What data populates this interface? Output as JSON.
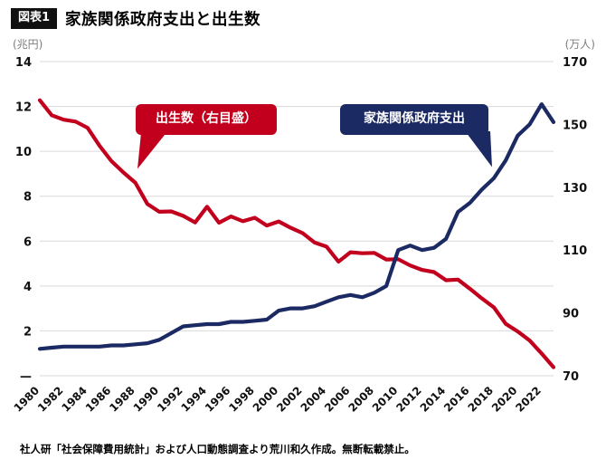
{
  "header": {
    "badge": "図表1",
    "title": "家族関係政府支出と出生数"
  },
  "chart": {
    "left_unit": "(兆円)",
    "right_unit": "(万人)",
    "births_label": "出生数（右目盛）",
    "spending_label": "家族関係政府支出",
    "accent_red": "#c2001e",
    "accent_navy": "#1b2a63"
  },
  "footer": {
    "note": "社人研「社会保障費用統計」および人口動態調査より荒川和久作成。無断転載禁止。"
  },
  "chart_data": {
    "type": "line",
    "title": "家族関係政府支出と出生数",
    "x": [
      1980,
      1981,
      1982,
      1983,
      1984,
      1985,
      1986,
      1987,
      1988,
      1989,
      1990,
      1991,
      1992,
      1993,
      1994,
      1995,
      1996,
      1997,
      1998,
      1999,
      2000,
      2001,
      2002,
      2003,
      2004,
      2005,
      2006,
      2007,
      2008,
      2009,
      2010,
      2011,
      2012,
      2013,
      2014,
      2015,
      2016,
      2017,
      2018,
      2019,
      2020,
      2021,
      2022,
      2023
    ],
    "x_tick_labels": [
      "1980",
      "1982",
      "1984",
      "1986",
      "1988",
      "1990",
      "1992",
      "1994",
      "1996",
      "1998",
      "2000",
      "2002",
      "2004",
      "2006",
      "2008",
      "2010",
      "2012",
      "2014",
      "2016",
      "2018",
      "2020",
      "2022"
    ],
    "series": [
      {
        "name": "出生数（右目盛）",
        "axis": "right",
        "color": "#c2001e",
        "values": [
          157.7,
          152.9,
          151.5,
          150.9,
          148.9,
          143.2,
          138.3,
          134.7,
          131.4,
          124.7,
          122.2,
          122.3,
          120.9,
          118.8,
          123.8,
          118.7,
          120.7,
          119.2,
          120.3,
          117.8,
          119.1,
          117.1,
          115.4,
          112.4,
          111.1,
          106.3,
          109.3,
          109.0,
          109.1,
          107.0,
          107.1,
          105.1,
          103.7,
          103.0,
          100.4,
          100.6,
          97.7,
          94.6,
          91.8,
          86.5,
          84.1,
          81.2,
          77.1,
          72.7
        ]
      },
      {
        "name": "家族関係政府支出",
        "axis": "left",
        "color": "#1b2a63",
        "values": [
          1.2,
          1.25,
          1.3,
          1.3,
          1.3,
          1.3,
          1.35,
          1.35,
          1.4,
          1.45,
          1.6,
          1.9,
          2.2,
          2.25,
          2.3,
          2.3,
          2.4,
          2.4,
          2.45,
          2.5,
          2.9,
          3.0,
          3.0,
          3.1,
          3.3,
          3.5,
          3.6,
          3.5,
          3.7,
          4.0,
          5.6,
          5.8,
          5.6,
          5.7,
          6.1,
          7.3,
          7.7,
          8.3,
          8.8,
          9.6,
          10.7,
          11.2,
          12.1,
          11.3
        ]
      }
    ],
    "left_axis": {
      "label": "(兆円)",
      "range": [
        0,
        14
      ],
      "ticks": [
        0,
        2,
        4,
        6,
        8,
        10,
        12,
        14
      ],
      "tick_labels": [
        "—",
        "2",
        "4",
        "6",
        "8",
        "10",
        "12",
        "14"
      ]
    },
    "right_axis": {
      "label": "(万人)",
      "range": [
        70,
        170
      ],
      "ticks": [
        70,
        90,
        110,
        130,
        150,
        170
      ],
      "tick_labels": [
        "70",
        "90",
        "110",
        "130",
        "150",
        "170"
      ]
    },
    "grid": true,
    "legend_position": "callout-labels-inside-plot"
  }
}
